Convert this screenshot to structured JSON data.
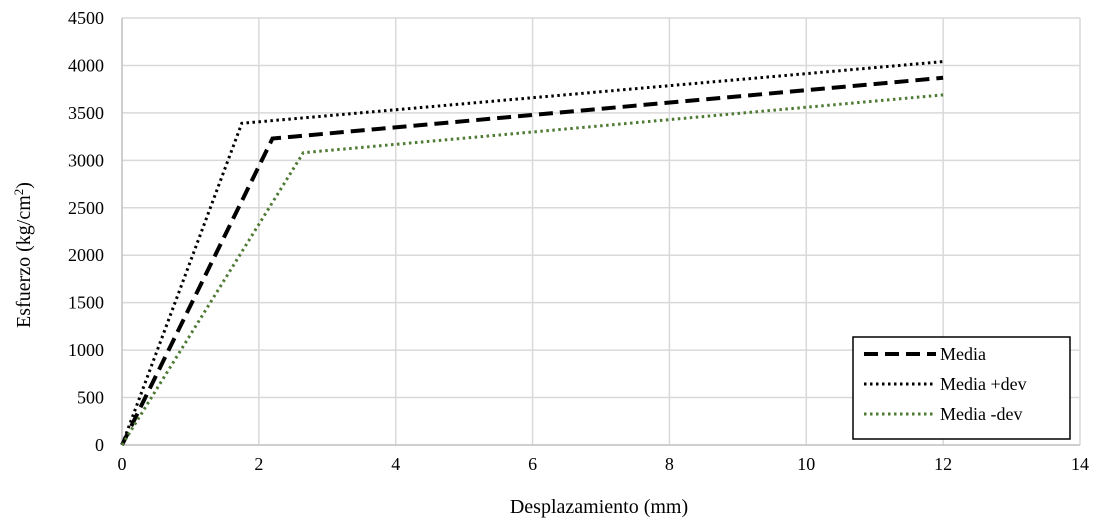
{
  "chart_data": {
    "type": "line",
    "title": "",
    "xlabel": "Desplazamiento (mm)",
    "ylabel_main": "Esfuerzo (kg/cm",
    "ylabel_sup": "2",
    "ylabel_close": ")",
    "xlim": [
      0,
      14
    ],
    "ylim": [
      0,
      4500
    ],
    "xticks": [
      0,
      2,
      4,
      6,
      8,
      10,
      12,
      14
    ],
    "yticks": [
      0,
      500,
      1000,
      1500,
      2000,
      2500,
      3000,
      3500,
      4000,
      4500
    ],
    "grid": true,
    "legend_position": "bottom-right",
    "series": [
      {
        "name": "Media",
        "color": "#000000",
        "style": "dashed",
        "x": [
          0,
          2.2,
          12
        ],
        "y": [
          0,
          3230,
          3870
        ]
      },
      {
        "name": "Media +dev",
        "color": "#000000",
        "style": "dotted",
        "x": [
          0,
          1.75,
          12
        ],
        "y": [
          0,
          3390,
          4040
        ]
      },
      {
        "name": "Media -dev",
        "color": "#4e7a33",
        "style": "dotted",
        "x": [
          0,
          2.65,
          12
        ],
        "y": [
          0,
          3080,
          3690
        ]
      }
    ]
  }
}
